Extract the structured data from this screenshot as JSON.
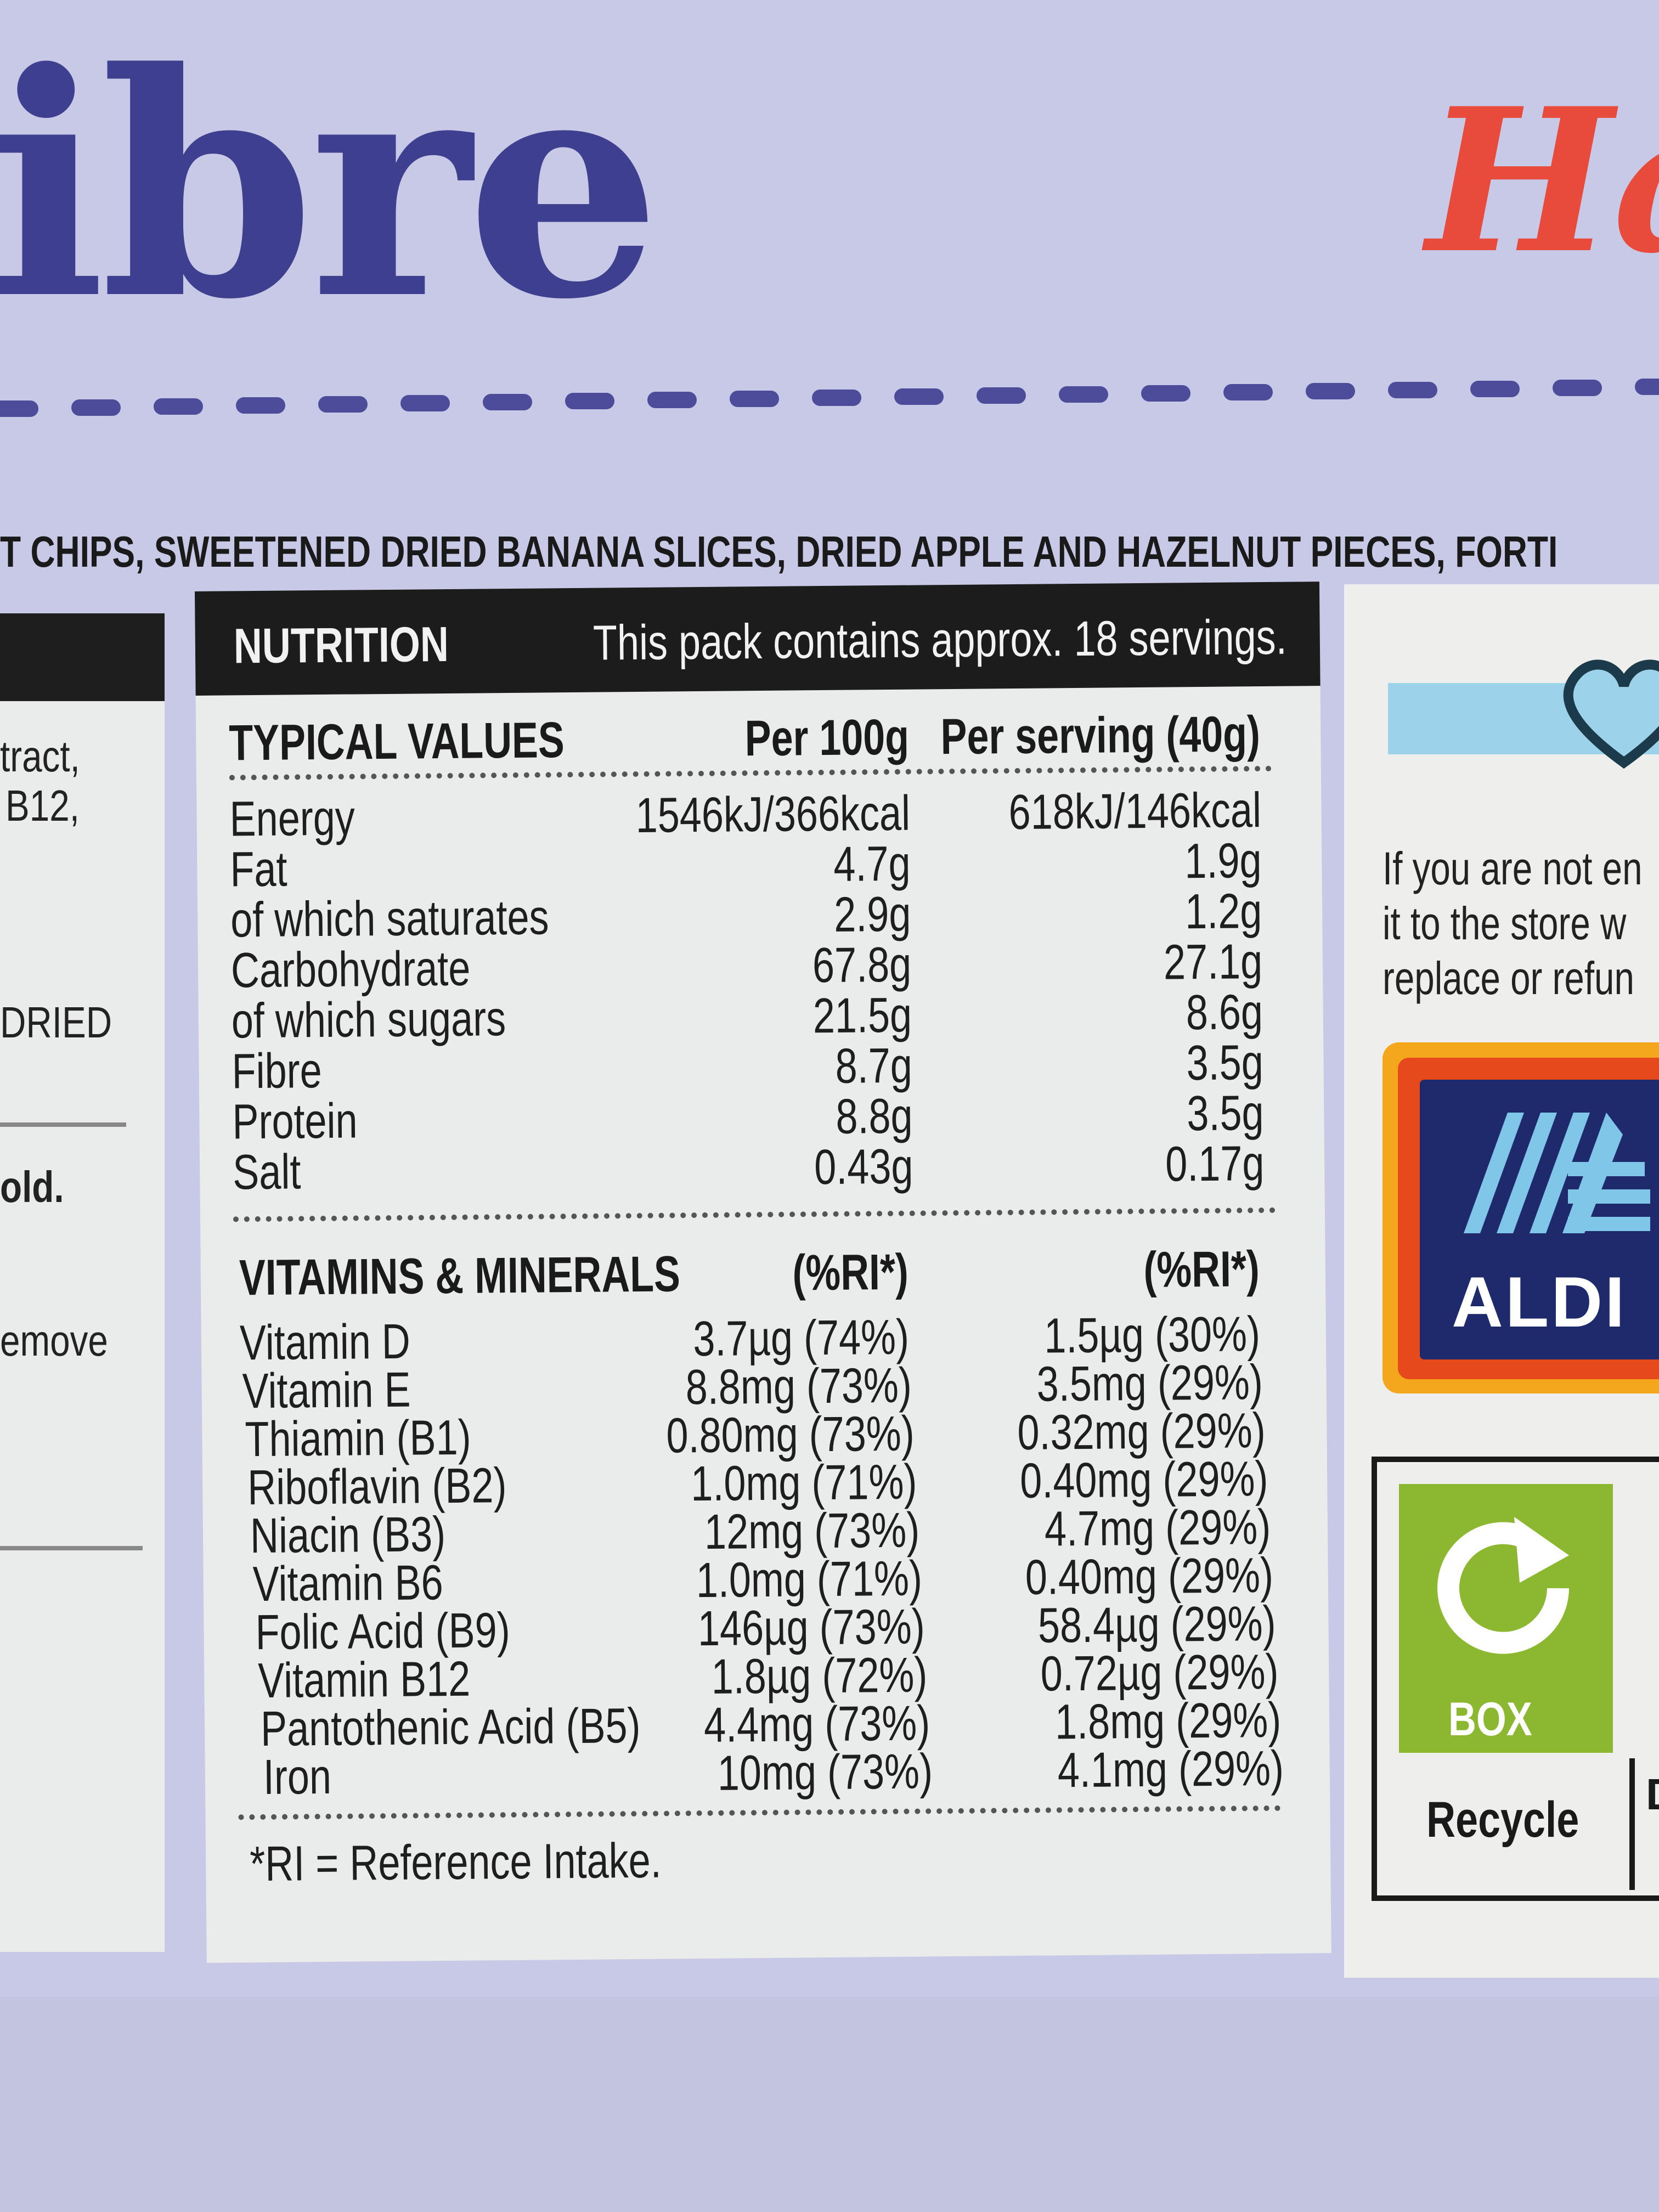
{
  "headline": {
    "word": "ibre",
    "script_word": "Ha"
  },
  "ingredients_strip": "T CHIPS, SWEETENED DRIED BANANA SLICES, DRIED APPLE AND HAZELNUT PIECES, FORTI",
  "left_fragments": [
    "tract,",
    "B12,",
    "DRIED",
    "old.",
    "emove"
  ],
  "nutrition": {
    "title": "NUTRITION",
    "servings_note": "This pack contains approx. 18 servings.",
    "typical_values_label": "TYPICAL VALUES",
    "col_per100": "Per 100g",
    "col_serving": "Per serving (40g)",
    "rows": [
      {
        "name": "Energy",
        "per100": "1546kJ/366kcal",
        "serving": "618kJ/146kcal"
      },
      {
        "name": "Fat",
        "per100": "4.7g",
        "serving": "1.9g"
      },
      {
        "name": "of which saturates",
        "per100": "2.9g",
        "serving": "1.2g"
      },
      {
        "name": "Carbohydrate",
        "per100": "67.8g",
        "serving": "27.1g"
      },
      {
        "name": "of which sugars",
        "per100": "21.5g",
        "serving": "8.6g"
      },
      {
        "name": "Fibre",
        "per100": "8.7g",
        "serving": "3.5g"
      },
      {
        "name": "Protein",
        "per100": "8.8g",
        "serving": "3.5g"
      },
      {
        "name": "Salt",
        "per100": "0.43g",
        "serving": "0.17g"
      }
    ],
    "vitamins_label": "VITAMINS & MINERALS",
    "ri_col1": "(%RI*)",
    "ri_col2": "(%RI*)",
    "vitamins": [
      {
        "name": "Vitamin D",
        "per100": "3.7µg (74%)",
        "serving": "1.5µg (30%)"
      },
      {
        "name": "Vitamin E",
        "per100": "8.8mg (73%)",
        "serving": "3.5mg (29%)"
      },
      {
        "name": "Thiamin (B1)",
        "per100": "0.80mg (73%)",
        "serving": "0.32mg (29%)"
      },
      {
        "name": "Riboflavin (B2)",
        "per100": "1.0mg (71%)",
        "serving": "0.40mg (29%)"
      },
      {
        "name": "Niacin (B3)",
        "per100": "12mg (73%)",
        "serving": "4.7mg (29%)"
      },
      {
        "name": "Vitamin B6",
        "per100": "1.0mg (71%)",
        "serving": "0.40mg (29%)"
      },
      {
        "name": "Folic Acid (B9)",
        "per100": "146µg (73%)",
        "serving": "58.4µg (29%)"
      },
      {
        "name": "Vitamin B12",
        "per100": "1.8µg (72%)",
        "serving": "0.72µg (29%)"
      },
      {
        "name": "Pantothenic Acid (B5)",
        "per100": "4.4mg (73%)",
        "serving": "1.8mg (29%)"
      },
      {
        "name": "Iron",
        "per100": "10mg (73%)",
        "serving": "4.1mg (29%)"
      }
    ],
    "footnote": "*RI = Reference Intake."
  },
  "right_panel": {
    "guarantee_lines": [
      "If you are not en",
      "it to the store w",
      "replace or refun"
    ],
    "logo_text": "ALDI",
    "recycle_box_label": "BOX",
    "recycle_label": "Recycle",
    "fragment": "D"
  },
  "colors": {
    "box_background": "#c7c9e6",
    "headline": "#3f3f8f",
    "script_word": "#e84a3c",
    "nutrition_header": "#1c1c1c",
    "aldi_blue": "#1e2a6b",
    "recycle_green": "#8bb830"
  }
}
